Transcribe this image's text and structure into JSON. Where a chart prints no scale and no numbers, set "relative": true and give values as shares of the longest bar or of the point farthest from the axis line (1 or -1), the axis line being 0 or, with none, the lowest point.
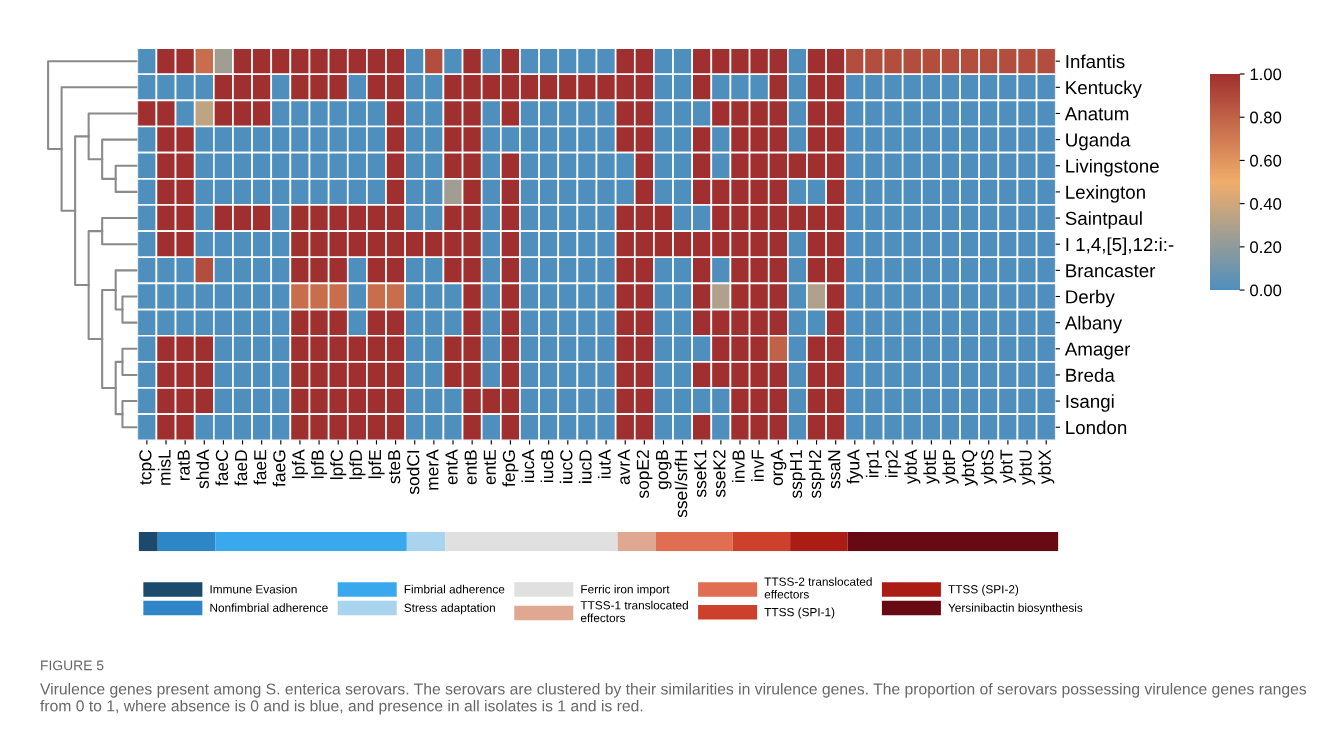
{
  "chart_data": [
    {
      "type": "heatmap",
      "categories": [
        "tcpC",
        "misL",
        "ratB",
        "shdA",
        "faeC",
        "faeD",
        "faeE",
        "faeG",
        "lpfA",
        "lpfB",
        "lpfC",
        "lpfD",
        "lpfE",
        "steB",
        "sodCI",
        "merA",
        "entA",
        "entB",
        "entE",
        "fepG",
        "iucA",
        "iucB",
        "iucC",
        "iucD",
        "iutA",
        "avrA",
        "sopE2",
        "gogB",
        "sseI/srfH",
        "sseK1",
        "sseK2",
        "invB",
        "invF",
        "orgA",
        "sspH1",
        "sspH2",
        "ssaN",
        "fyuA",
        "irp1",
        "irp2",
        "ybtA",
        "ybtE",
        "ybtP",
        "ybtQ",
        "ybtS",
        "ybtT",
        "ybtU",
        "ybtX"
      ],
      "y_categories": [
        "Infantis",
        "Kentucky",
        "Anatum",
        "Uganda",
        "Livingstone",
        "Lexington",
        "Saintpaul",
        "I 1,4,[5],12:i:-",
        "Brancaster",
        "Derby",
        "Albany",
        "Amager",
        "Breda",
        "Isangi",
        "London"
      ],
      "cells": [
        [
          0,
          1,
          1,
          0.75,
          0.25,
          1,
          1,
          1,
          1,
          1,
          1,
          1,
          1,
          1,
          0,
          0.88,
          0,
          1,
          0,
          1,
          0,
          0,
          0,
          0,
          0,
          1,
          1,
          0,
          0,
          1,
          1,
          1,
          1,
          1,
          0,
          1,
          1,
          0.88,
          0.88,
          0.88,
          0.88,
          0.88,
          0.88,
          0.88,
          0.88,
          0.88,
          0.88,
          0.88
        ],
        [
          0,
          0,
          0,
          0,
          1,
          1,
          1,
          0,
          1,
          1,
          1,
          0,
          1,
          1,
          0,
          0,
          1,
          1,
          1,
          1,
          1,
          1,
          1,
          1,
          1,
          1,
          1,
          0,
          0,
          1,
          0,
          0,
          0,
          1,
          0,
          1,
          1,
          0,
          0,
          0,
          0,
          0,
          0,
          0,
          0,
          0,
          0,
          0
        ],
        [
          1,
          1,
          0,
          0.35,
          1,
          1,
          1,
          0,
          0,
          0,
          0,
          0,
          0,
          1,
          0,
          0,
          1,
          1,
          0,
          1,
          0,
          0,
          0,
          0,
          0,
          1,
          1,
          0,
          0,
          0,
          1,
          1,
          1,
          1,
          0,
          1,
          1,
          0,
          0,
          0,
          0,
          0,
          0,
          0,
          0,
          0,
          0,
          0
        ],
        [
          0,
          1,
          1,
          0,
          0,
          0,
          0,
          0,
          0,
          0,
          0,
          0,
          0,
          1,
          0,
          0,
          1,
          1,
          0,
          0,
          0,
          0,
          0,
          0,
          0,
          1,
          1,
          0,
          0,
          1,
          0,
          1,
          1,
          1,
          0,
          1,
          1,
          0,
          0,
          0,
          0,
          0,
          0,
          0,
          0,
          0,
          0,
          0
        ],
        [
          0,
          1,
          1,
          0,
          0,
          0,
          0,
          0,
          0,
          0,
          0,
          0,
          0,
          1,
          0,
          0,
          1,
          1,
          0,
          1,
          0,
          0,
          0,
          0,
          0,
          0,
          1,
          0,
          0,
          1,
          0,
          1,
          1,
          1,
          1,
          1,
          1,
          0,
          0,
          0,
          0,
          0,
          0,
          0,
          0,
          0,
          0,
          0
        ],
        [
          0,
          1,
          1,
          0,
          0,
          0,
          0,
          0,
          0,
          0,
          0,
          0,
          0,
          1,
          0,
          0,
          0.25,
          1,
          0,
          1,
          0,
          0,
          0,
          0,
          0,
          0,
          1,
          0,
          0,
          1,
          1,
          1,
          1,
          1,
          0,
          0,
          1,
          0,
          0,
          0,
          0,
          0,
          0,
          0,
          0,
          0,
          0,
          0
        ],
        [
          0,
          1,
          1,
          0,
          1,
          1,
          1,
          0,
          1,
          1,
          1,
          1,
          1,
          1,
          0,
          0,
          1,
          1,
          0,
          1,
          0,
          0,
          0,
          0,
          0,
          1,
          1,
          1,
          0,
          0,
          1,
          1,
          1,
          1,
          1,
          1,
          1,
          0,
          0,
          0,
          0,
          0,
          0,
          0,
          0,
          0,
          0,
          0
        ],
        [
          0,
          1,
          1,
          0,
          0,
          0,
          0,
          0,
          1,
          1,
          1,
          1,
          1,
          1,
          1,
          1,
          1,
          1,
          0,
          1,
          0,
          0,
          0,
          0,
          0,
          1,
          1,
          1,
          1,
          1,
          1,
          1,
          1,
          1,
          0,
          1,
          1,
          0,
          0,
          0,
          0,
          0,
          0,
          0,
          0,
          0,
          0,
          0
        ],
        [
          0,
          0,
          0,
          0.88,
          0,
          0,
          0,
          0,
          1,
          1,
          1,
          0,
          1,
          1,
          0,
          0,
          1,
          1,
          0,
          1,
          0,
          0,
          0,
          0,
          0,
          1,
          1,
          0,
          0,
          1,
          0,
          1,
          1,
          1,
          0,
          1,
          1,
          0,
          0,
          0,
          0,
          0,
          0,
          0,
          0,
          0,
          0,
          0
        ],
        [
          0,
          0,
          0,
          0,
          0,
          0,
          0,
          0,
          0.75,
          0.75,
          0.75,
          0,
          0.75,
          0.75,
          0,
          0,
          0,
          1,
          0,
          1,
          0,
          0,
          0,
          0,
          0,
          1,
          1,
          0,
          0,
          1,
          0.3,
          1,
          1,
          1,
          0,
          0.3,
          1,
          0,
          0,
          0,
          0,
          0,
          0,
          0,
          0,
          0,
          0,
          0
        ],
        [
          0,
          0,
          0,
          0,
          0,
          0,
          0,
          0,
          1,
          1,
          1,
          0,
          1,
          1,
          0,
          0,
          0,
          1,
          0,
          1,
          0,
          0,
          0,
          0,
          0,
          1,
          1,
          0,
          0,
          1,
          1,
          1,
          1,
          1,
          0,
          0,
          1,
          0,
          0,
          0,
          0,
          0,
          0,
          0,
          0,
          0,
          0,
          0
        ],
        [
          0,
          1,
          1,
          1,
          0,
          0,
          0,
          0,
          1,
          1,
          1,
          1,
          1,
          1,
          0,
          0,
          1,
          1,
          0,
          1,
          0,
          0,
          0,
          0,
          0,
          1,
          1,
          0,
          0,
          0,
          1,
          1,
          1,
          0.8,
          0,
          1,
          1,
          0,
          0,
          0,
          0,
          0,
          0,
          0,
          0,
          0,
          0,
          0
        ],
        [
          0,
          1,
          1,
          1,
          0,
          0,
          0,
          0,
          1,
          1,
          1,
          1,
          1,
          1,
          0,
          0,
          1,
          1,
          0,
          1,
          0,
          0,
          0,
          0,
          0,
          1,
          1,
          0,
          0,
          1,
          1,
          1,
          1,
          1,
          0,
          1,
          1,
          0,
          0,
          0,
          0,
          0,
          0,
          0,
          0,
          0,
          0,
          0
        ],
        [
          0,
          1,
          1,
          1,
          0,
          0,
          0,
          0,
          1,
          1,
          1,
          1,
          1,
          1,
          0,
          0,
          0,
          1,
          1,
          1,
          0,
          0,
          0,
          0,
          0,
          1,
          1,
          0,
          0,
          0,
          0,
          1,
          1,
          1,
          0,
          1,
          1,
          0,
          0,
          0,
          0,
          0,
          0,
          0,
          0,
          0,
          0,
          0
        ],
        [
          0,
          1,
          1,
          0,
          0,
          0,
          0,
          0,
          1,
          1,
          1,
          1,
          1,
          1,
          0,
          0,
          0,
          1,
          0,
          1,
          0,
          0,
          0,
          0,
          0,
          1,
          1,
          0,
          0,
          1,
          0,
          1,
          1,
          1,
          0,
          1,
          1,
          0,
          0,
          0,
          0,
          0,
          0,
          0,
          0,
          0,
          0,
          0
        ]
      ],
      "clim": [
        0,
        1
      ],
      "cticks": [
        {
          "value": 0,
          "label": "0.00"
        },
        {
          "value": 0.2,
          "label": "0.20"
        },
        {
          "value": 0.4,
          "label": "0.40"
        },
        {
          "value": 0.6,
          "label": "0.60"
        },
        {
          "value": 0.8,
          "label": "0.80"
        },
        {
          "value": 1,
          "label": "1.00"
        }
      ],
      "annotations": [
        "FIGURE 5",
        "Virulence genes present among S. enterica serovars. The serovars are clustered by their similarities in virulence genes. The proportion of serovars possessing virulence genes ranges from 0 to 1, where absence is 0 and is blue, and presence in all isolates is 1 and is red."
      ]
    },
    {
      "type": "bar",
      "orientation": "horizontal",
      "stacked": true,
      "relative": true,
      "categories": [
        null
      ],
      "legend": "bottom",
      "series": [
        {
          "name": "Immune Evasion",
          "color": "#1b4a6d",
          "values": [
            0.0208
          ]
        },
        {
          "name": "Nonfimbrial adherence",
          "color": "#2e86c6",
          "values": [
            0.0625
          ]
        },
        {
          "name": "Fimbrial adherence",
          "color": "#3aa8ec",
          "values": [
            0.2083
          ]
        },
        {
          "name": "Stress adaptation",
          "color": "#a8d4ee",
          "values": [
            0.0417
          ]
        },
        {
          "name": "Ferric iron import",
          "color": "#e0e0e0",
          "values": [
            0.1875
          ]
        },
        {
          "name": "TTSS-1 translocated\neffectors",
          "color": "#e0a890",
          "values": [
            0.0417
          ]
        },
        {
          "name": "TTSS-2 translocated\neffectors",
          "color": "#e06e52",
          "values": [
            0.0833
          ]
        },
        {
          "name": "TTSS (SPI-1)",
          "color": "#cc402c",
          "values": [
            0.0625
          ]
        },
        {
          "name": "TTSS (SPI-2)",
          "color": "#ab1d14",
          "values": [
            0.0625
          ]
        },
        {
          "name": "Yersinibactin biosynthesis",
          "color": "#680a14",
          "values": [
            0.2292
          ]
        }
      ]
    }
  ]
}
